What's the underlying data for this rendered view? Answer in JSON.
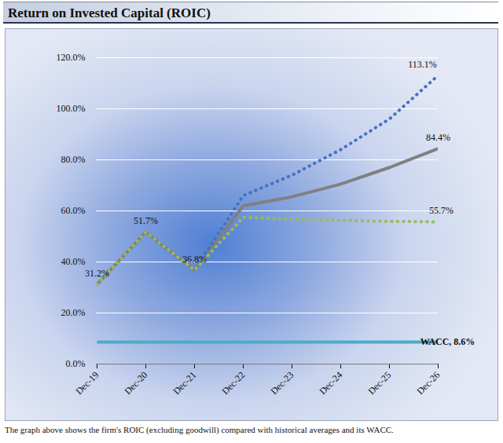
{
  "chart_data": {
    "type": "line",
    "title": "Return on Invested Capital (ROIC)",
    "caption": "The graph above shows the firm's ROIC (excluding goodwill) compared with historical averages and its WACC.",
    "categories": [
      "Dec-19",
      "Dec-20",
      "Dec-21",
      "Dec-22",
      "Dec-23",
      "Dec-24",
      "Dec-25",
      "Dec-26"
    ],
    "ylim": [
      0,
      120
    ],
    "yticks": [
      {
        "value": 0,
        "label": "0.0%"
      },
      {
        "value": 20,
        "label": "20.0%"
      },
      {
        "value": 40,
        "label": "40.0%"
      },
      {
        "value": 60,
        "label": "60.0%"
      },
      {
        "value": 80,
        "label": "80.0%"
      },
      {
        "value": 100,
        "label": "100.0%"
      },
      {
        "value": 120,
        "label": "120.0%"
      }
    ],
    "grid": true,
    "series": [
      {
        "color": "#808080",
        "line_style": "solid",
        "values": [
          31.2,
          51.7,
          36.8,
          62,
          65.5,
          70.5,
          77,
          84.4
        ],
        "value_labels": [
          "31.2%",
          "51.7%",
          "36.8%",
          null,
          null,
          null,
          null,
          "84.4%"
        ]
      },
      {
        "color": "#4472c4",
        "line_style": "dotted",
        "values": [
          31.2,
          51.7,
          36.8,
          66,
          74,
          84,
          96,
          113.1
        ],
        "value_labels": [
          null,
          null,
          null,
          null,
          null,
          null,
          null,
          "113.1%"
        ]
      },
      {
        "color": "#9bbb59",
        "line_style": "dotted",
        "values": [
          31.2,
          51.7,
          36.8,
          57.5,
          56.8,
          56.3,
          55.9,
          55.7
        ],
        "value_labels": [
          null,
          null,
          null,
          null,
          null,
          null,
          null,
          "55.7%"
        ]
      },
      {
        "color": "#4bacc6",
        "line_style": "solid",
        "values": [
          8.6,
          8.6,
          8.6,
          8.6,
          8.6,
          8.6,
          8.6,
          8.6
        ],
        "value_labels": [
          null,
          null,
          null,
          null,
          null,
          null,
          null,
          "WACC, 8.6%"
        ]
      }
    ]
  }
}
